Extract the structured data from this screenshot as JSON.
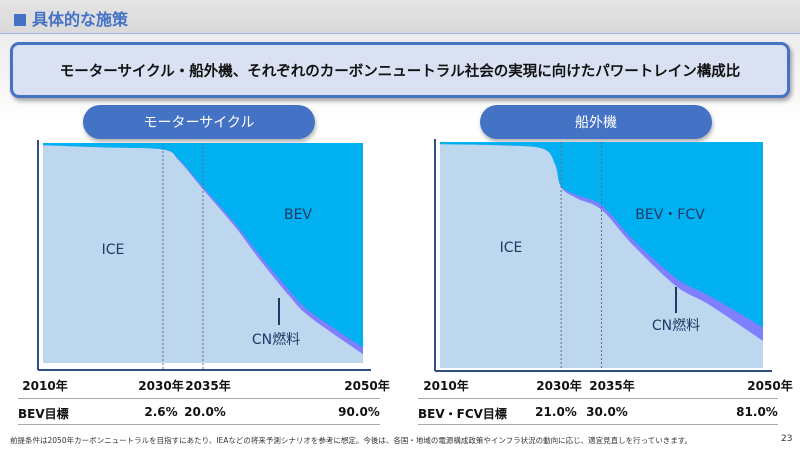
{
  "header": {
    "title": "具体的な施策"
  },
  "banner": {
    "text": "モーターサイクル・船外機、それぞれのカーボンニュートラル社会の実現に向けたパワートレイン構成比"
  },
  "colors": {
    "accent": "#4472c4",
    "ice": "#bdd7ee",
    "bev": "#00b0f0",
    "cn_fuel": "#8080ff",
    "label": "#1f3864"
  },
  "chart_data": [
    {
      "type": "area",
      "title": "モーターサイクル",
      "x_tick_labels": [
        "2010年",
        "2030年",
        "2035年",
        "2050年"
      ],
      "x_ticks": [
        2010,
        2030,
        2035,
        2050
      ],
      "ylim": [
        0,
        100
      ],
      "x": [
        2010,
        2020,
        2030,
        2032,
        2035,
        2038,
        2040,
        2043,
        2045,
        2050
      ],
      "series": [
        {
          "name": "ICE",
          "values": [
            99,
            98,
            97,
            92,
            79,
            62,
            49,
            31,
            21,
            4
          ]
        },
        {
          "name": "CN燃料",
          "values": [
            0,
            0,
            0,
            0.5,
            1,
            1.5,
            2,
            2.5,
            2.5,
            3
          ]
        },
        {
          "name": "BEV",
          "values": [
            1,
            2,
            3,
            7.5,
            20,
            36.5,
            49,
            66.5,
            76.5,
            93
          ]
        }
      ],
      "annotations": [
        "ICE",
        "BEV",
        "CN燃料"
      ],
      "targets": {
        "label": "BEV目標",
        "values": [
          "2.6%",
          "20.0%",
          "90.0%"
        ]
      }
    },
    {
      "type": "area",
      "title": "船外機",
      "x_tick_labels": [
        "2010年",
        "2030年",
        "2035年",
        "2050年"
      ],
      "x_ticks": [
        2010,
        2030,
        2035,
        2050
      ],
      "ylim": [
        0,
        100
      ],
      "x": [
        2010,
        2020,
        2027,
        2029,
        2030,
        2032,
        2035,
        2038,
        2042,
        2045,
        2050
      ],
      "series": [
        {
          "name": "ICE",
          "values": [
            99,
            98.5,
            97,
            90,
            80,
            75,
            70,
            54,
            36,
            28,
            12
          ]
        },
        {
          "name": "CN燃料",
          "values": [
            0,
            0,
            0,
            0.3,
            0.5,
            1.5,
            2,
            2.5,
            3.5,
            4,
            6
          ]
        },
        {
          "name": "BEV・FCV",
          "values": [
            1,
            1.5,
            3,
            9.7,
            19.5,
            23.5,
            28,
            43.5,
            60.5,
            68,
            82
          ]
        }
      ],
      "annotations": [
        "ICE",
        "BEV・FCV",
        "CN燃料"
      ],
      "targets": {
        "label": "BEV・FCV目標",
        "values": [
          "21.0%",
          "30.0%",
          "81.0%"
        ]
      }
    }
  ],
  "footer": {
    "note": "前提条件は2050年カーボンニュートラルを目指すにあたり、IEAなどの将来予測シナリオを参考に想定。今後は、各国・地域の電源構成政策やインフラ状況の動向に応じ、適宜見直しを行っていきます。",
    "page": "23"
  }
}
